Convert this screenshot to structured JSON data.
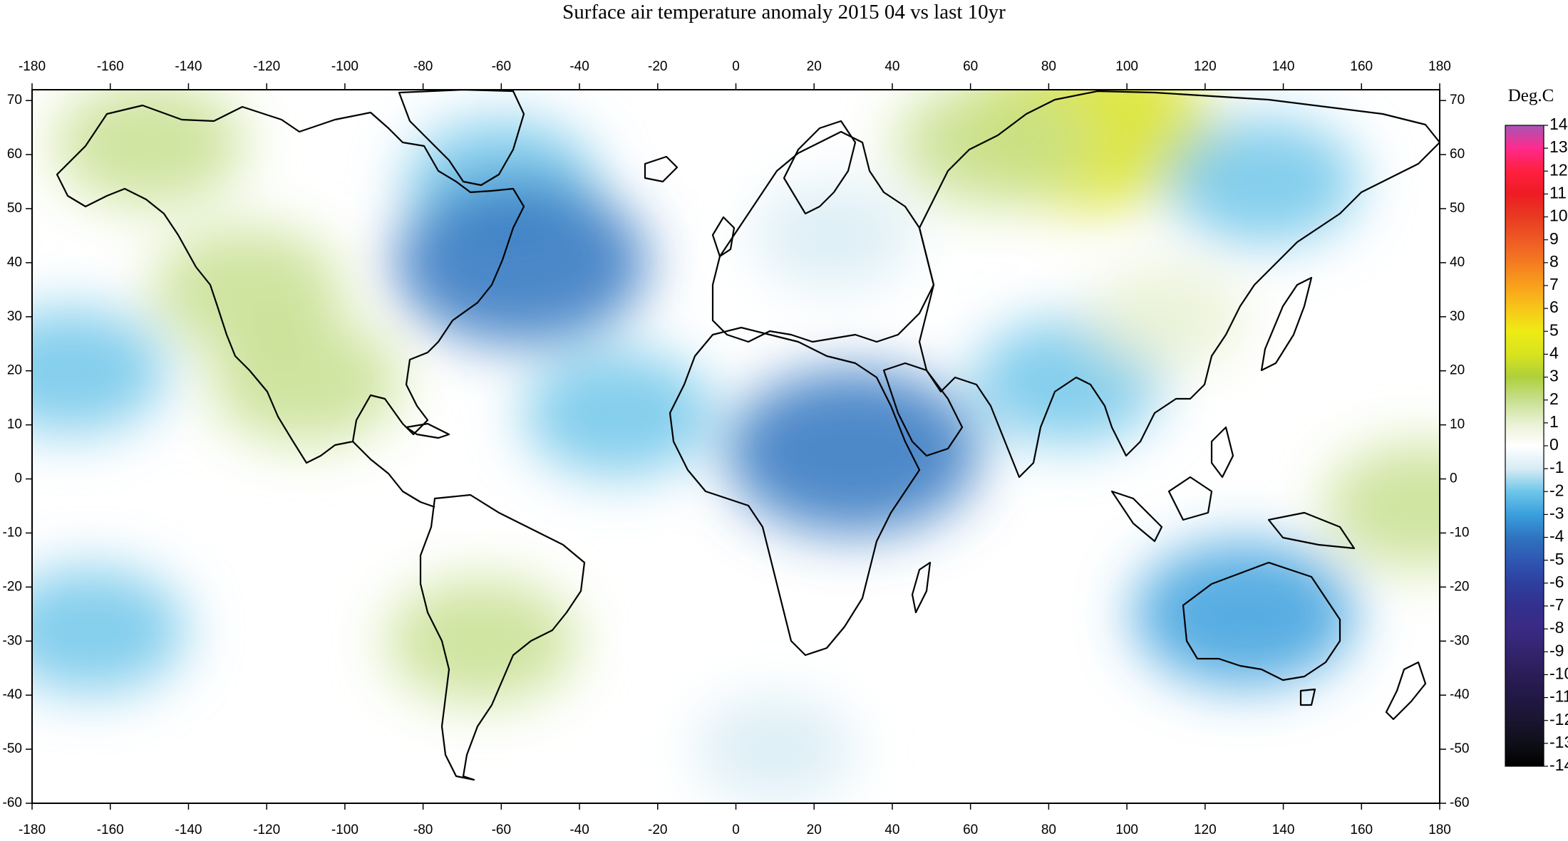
{
  "title": "Surface air temperature anomaly 2015 04 vs last 10yr",
  "x_ticks": [
    "-180",
    "-160",
    "-140",
    "-120",
    "-100",
    "-80",
    "-60",
    "-40",
    "-20",
    "0",
    "20",
    "40",
    "60",
    "80",
    "100",
    "120",
    "140",
    "160",
    "180"
  ],
  "y_ticks": [
    "70",
    "60",
    "50",
    "40",
    "30",
    "20",
    "10",
    "0",
    "-10",
    "-20",
    "-30",
    "-40",
    "-50",
    "-60"
  ],
  "colorbar": {
    "title": "Deg.C",
    "labels": [
      "14",
      "13",
      "12",
      "11",
      "10",
      "9",
      "8",
      "7",
      "6",
      "5",
      "4",
      "3",
      "2",
      "1",
      "0",
      "-1",
      "-2",
      "-3",
      "-4",
      "-5",
      "-6",
      "-7",
      "-8",
      "-9",
      "-10",
      "-11",
      "-12",
      "-13",
      "-14"
    ],
    "colors": [
      "#a855b5",
      "#ff2a8c",
      "#ff1f3f",
      "#ee1c24",
      "#e83a22",
      "#ee5a24",
      "#f47b20",
      "#f8a01c",
      "#f7c619",
      "#eeeb14",
      "#d8e31e",
      "#aed03b",
      "#c7df8f",
      "#e9f1d2",
      "#ffffff",
      "#d7ecf5",
      "#6ec6ea",
      "#3a9fdd",
      "#2f74c0",
      "#2f57b3",
      "#2e3f9e",
      "#33308e",
      "#3b2a85",
      "#33246e",
      "#2a1d57",
      "#221845",
      "#1a1530",
      "#0f0f18",
      "#000000"
    ]
  },
  "chart_data": {
    "type": "heatmap",
    "title": "Surface air temperature anomaly 2015 04 vs last 10yr",
    "xlabel": "",
    "ylabel": "",
    "xlim": [
      -180,
      180
    ],
    "ylim": [
      -60,
      72
    ],
    "unit": "Deg.C",
    "scale_range": [
      -14,
      14
    ],
    "anomaly_regions": [
      {
        "lon": -150,
        "lat": 62,
        "value": 2
      },
      {
        "lon": -125,
        "lat": 35,
        "value": 2
      },
      {
        "lon": -110,
        "lat": 18,
        "value": 2
      },
      {
        "lon": -60,
        "lat": 55,
        "value": -2
      },
      {
        "lon": -55,
        "lat": 40,
        "value": -4
      },
      {
        "lon": -170,
        "lat": 20,
        "value": -2
      },
      {
        "lon": -165,
        "lat": -28,
        "value": -2
      },
      {
        "lon": -65,
        "lat": -30,
        "value": 2
      },
      {
        "lon": -30,
        "lat": 12,
        "value": -2
      },
      {
        "lon": 30,
        "lat": 5,
        "value": -4
      },
      {
        "lon": 25,
        "lat": 45,
        "value": -1
      },
      {
        "lon": 90,
        "lat": 65,
        "value": 4
      },
      {
        "lon": 65,
        "lat": 62,
        "value": 2
      },
      {
        "lon": 135,
        "lat": 55,
        "value": -2
      },
      {
        "lon": 85,
        "lat": 18,
        "value": -2
      },
      {
        "lon": 130,
        "lat": -25,
        "value": -3
      },
      {
        "lon": 110,
        "lat": 30,
        "value": 1
      },
      {
        "lon": 175,
        "lat": -5,
        "value": 2
      },
      {
        "lon": 10,
        "lat": -50,
        "value": -1
      }
    ]
  }
}
